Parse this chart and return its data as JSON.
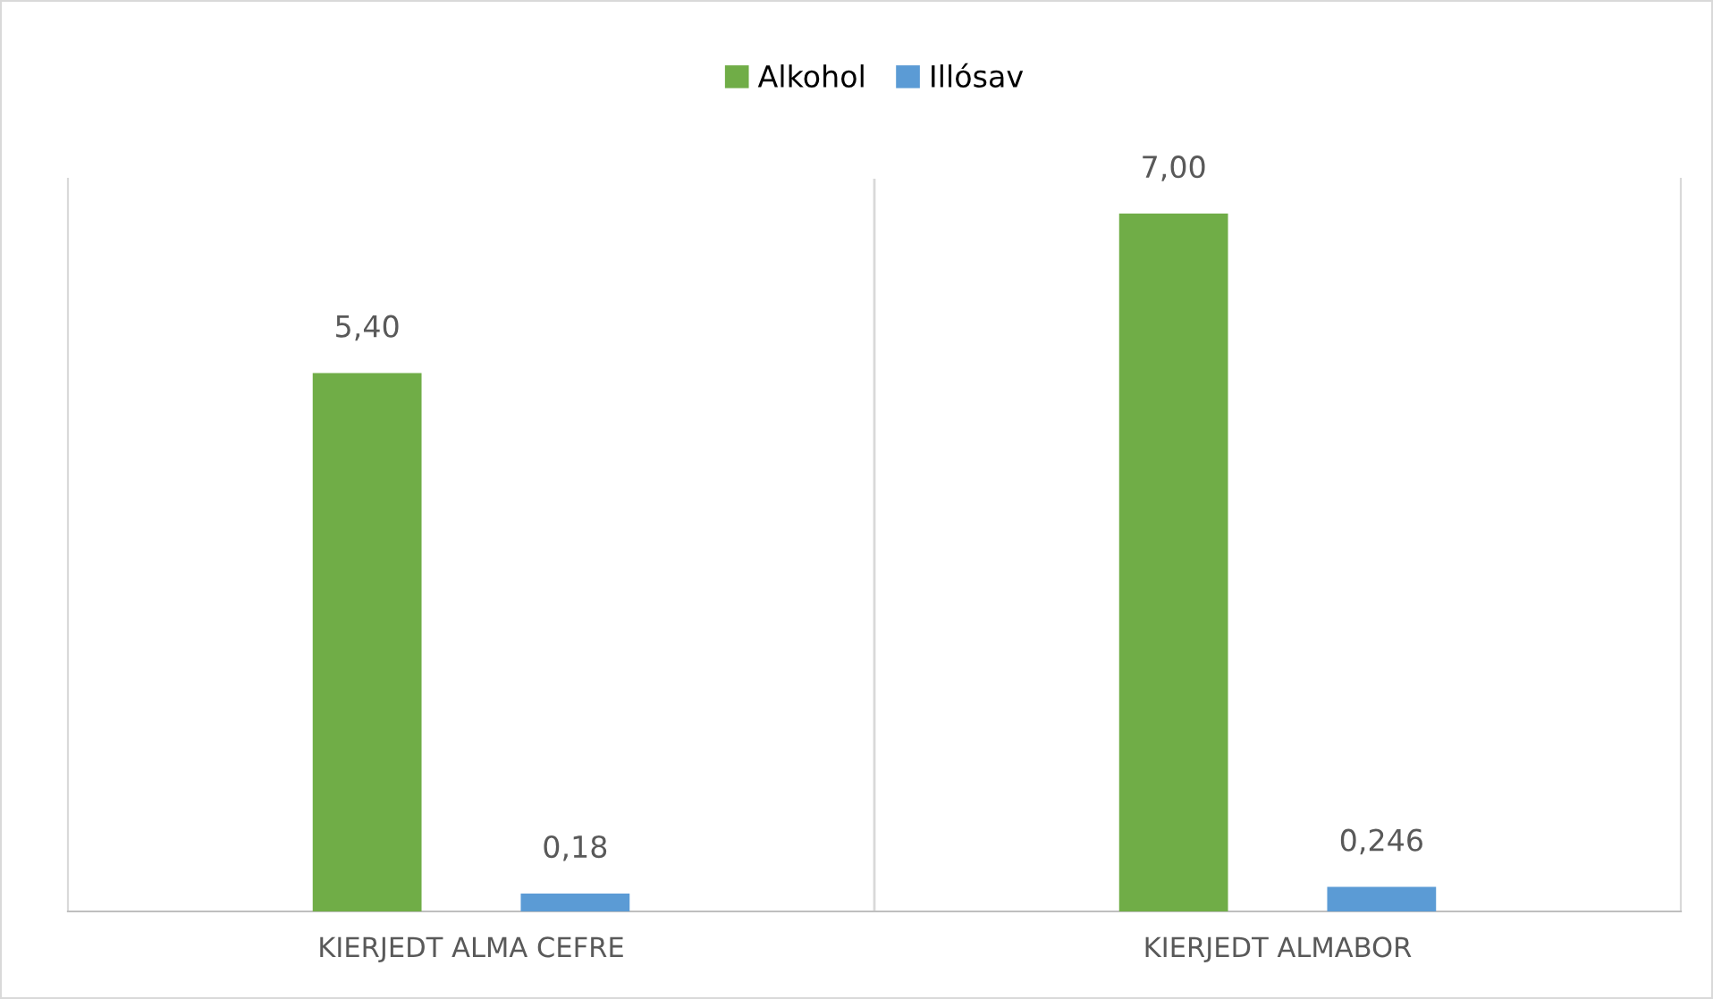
{
  "chart_data": {
    "type": "bar",
    "categories": [
      "KIERJEDT ALMA CEFRE",
      "KIERJEDT ALMABOR"
    ],
    "series": [
      {
        "name": "Alkohol",
        "color": "#70ad47",
        "values": [
          5.4,
          7.0
        ],
        "value_labels": [
          "5,40",
          "7,00"
        ]
      },
      {
        "name": "Illósav",
        "color": "#5b9bd5",
        "values": [
          0.18,
          0.246
        ],
        "value_labels": [
          "0,18",
          "0,246"
        ]
      }
    ],
    "legend": "top",
    "grid": "x",
    "tick_labels": "x"
  }
}
